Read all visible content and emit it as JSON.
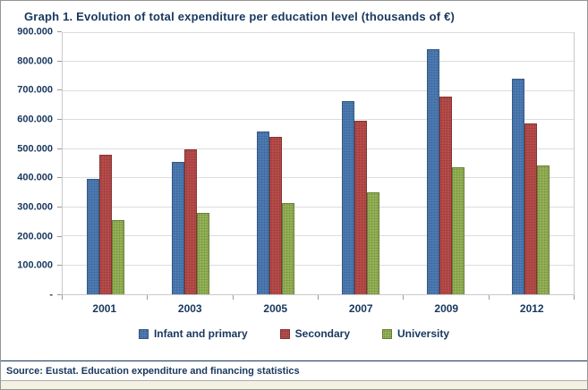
{
  "title": "Graph 1. Evolution of total expenditure per education level (thousands of €)",
  "source": "Source: Eustat. Education expenditure and financing statistics",
  "colors": {
    "navy_text": "#17375E",
    "series_blue": "#4F81BD",
    "series_red": "#C0504D",
    "series_green": "#9BBB59"
  },
  "chart_data": {
    "type": "bar",
    "title": "Graph 1. Evolution of total expenditure per education level (thousands of €)",
    "categories": [
      "2001",
      "2003",
      "2005",
      "2007",
      "2009",
      "2012"
    ],
    "series": [
      {
        "name": "Infant and primary",
        "color": "#4F81BD",
        "values": [
          398000,
          455000,
          560000,
          666000,
          845000,
          743000
        ]
      },
      {
        "name": "Secondary",
        "color": "#C0504D",
        "values": [
          480000,
          500000,
          542000,
          598000,
          680000,
          590000
        ]
      },
      {
        "name": "University",
        "color": "#9BBB59",
        "values": [
          257000,
          279000,
          313000,
          350000,
          437000,
          443000
        ]
      }
    ],
    "xlabel": "",
    "ylabel": "",
    "ylim": [
      0,
      900000
    ],
    "yticks": [
      {
        "v": 900000,
        "label": "900.000"
      },
      {
        "v": 800000,
        "label": "800.000"
      },
      {
        "v": 700000,
        "label": "700.000"
      },
      {
        "v": 600000,
        "label": "600.000"
      },
      {
        "v": 500000,
        "label": "500.000"
      },
      {
        "v": 400000,
        "label": "400.000"
      },
      {
        "v": 300000,
        "label": "300.000"
      },
      {
        "v": 200000,
        "label": "200.000"
      },
      {
        "v": 100000,
        "label": "100.000"
      },
      {
        "v": 0,
        "label": "-"
      }
    ],
    "grid": true,
    "legend_position": "bottom"
  }
}
